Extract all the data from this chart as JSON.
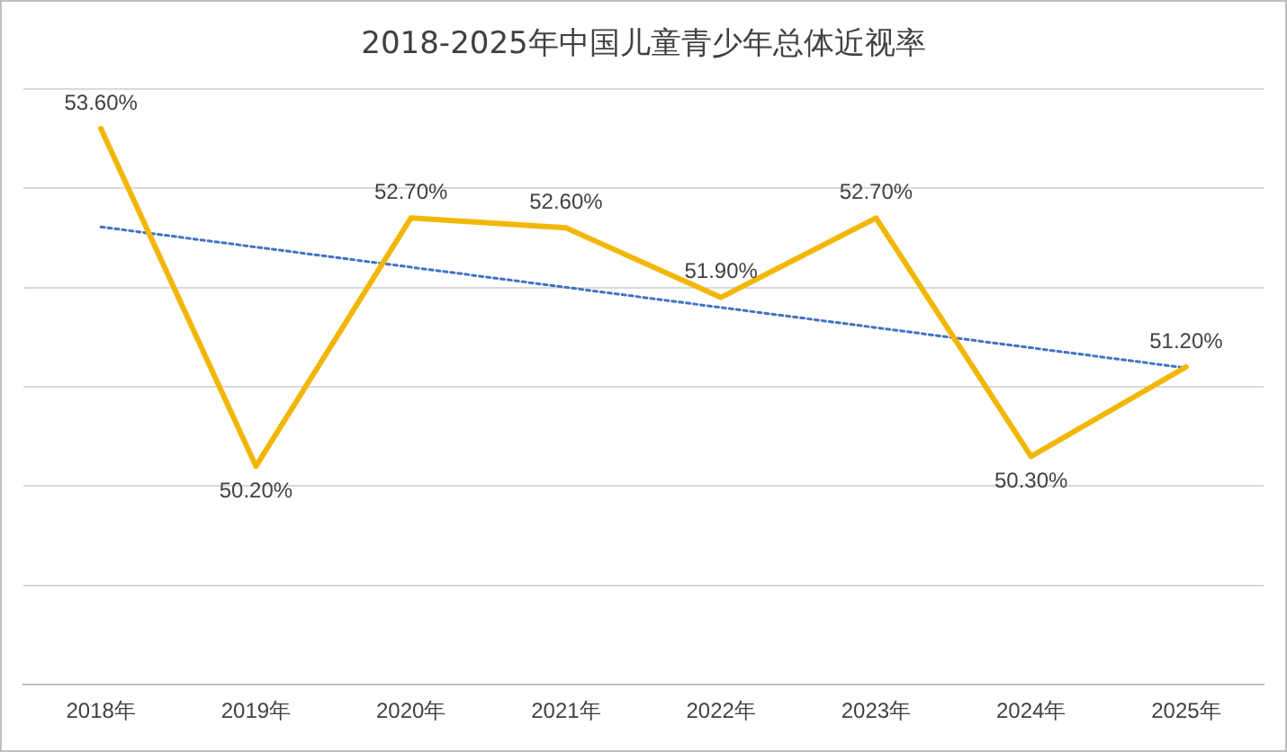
{
  "chart_data": {
    "type": "line",
    "title": "2018-2025年中国儿童青少年总体近视率",
    "categories": [
      "2018年",
      "2019年",
      "2020年",
      "2021年",
      "2022年",
      "2023年",
      "2024年",
      "2025年"
    ],
    "series": [
      {
        "color": "#f2b705",
        "values": [
          53.6,
          50.2,
          52.7,
          52.6,
          51.9,
          52.7,
          50.3,
          51.2
        ],
        "value_labels": [
          "53.60%",
          "50.20%",
          "52.70%",
          "52.60%",
          "51.90%",
          "52.70%",
          "50.30%",
          "51.20%"
        ]
      },
      {
        "type": "line",
        "color": "#4472c4",
        "line_style": "dotted",
        "x": [
          "2018年",
          "2025年"
        ],
        "values": [
          52.61,
          51.19
        ]
      }
    ],
    "ylim": [
      48,
      54
    ],
    "yticks": [
      {
        "value": 48,
        "label": null
      },
      {
        "value": 49,
        "label": null
      },
      {
        "value": 50,
        "label": null
      },
      {
        "value": 51,
        "label": null
      },
      {
        "value": 52,
        "label": null
      },
      {
        "value": 53,
        "label": null
      },
      {
        "value": 54,
        "label": null
      }
    ],
    "grid": "y",
    "tick_labels": "x",
    "legend": false,
    "marker": "none"
  }
}
